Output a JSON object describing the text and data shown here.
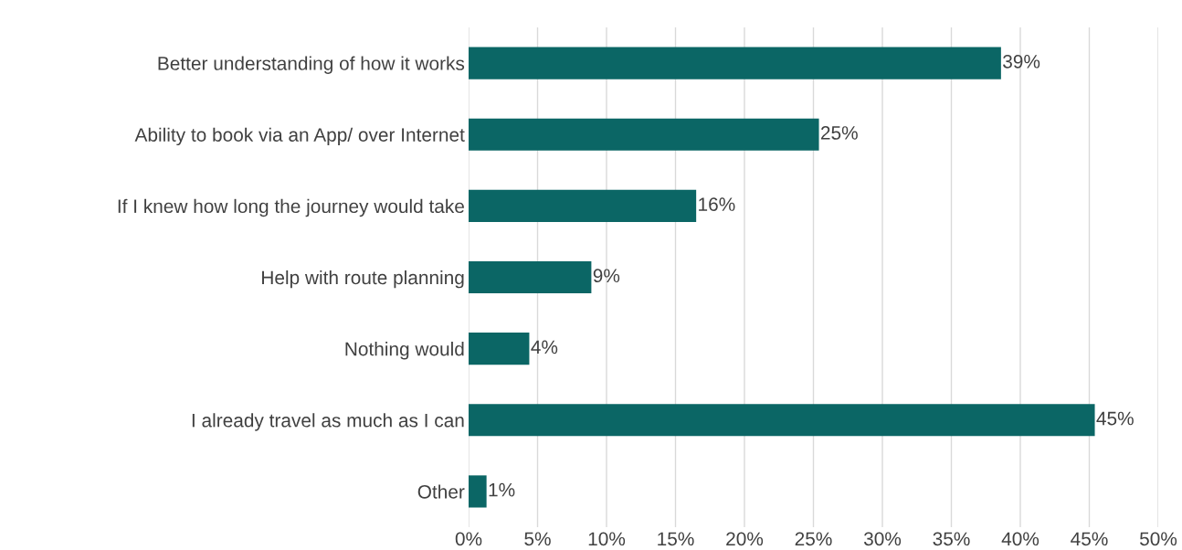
{
  "chart_data": {
    "type": "bar",
    "orientation": "horizontal",
    "categories": [
      "Better understanding of how it works",
      "Ability to book via an App/ over Internet",
      "If I knew how long the journey would take",
      "Help with route planning",
      "Nothing would",
      "I already travel as much as I can",
      "Other"
    ],
    "values": [
      38.6,
      25.4,
      16.5,
      8.9,
      4.4,
      45.4,
      1.3
    ],
    "value_labels": [
      "39%",
      "25%",
      "16%",
      "9%",
      "4%",
      "45%",
      "1%"
    ],
    "color": "#0b6665",
    "xlim": [
      0,
      50
    ],
    "xticks": [
      {
        "value": 0,
        "label": "0%"
      },
      {
        "value": 5,
        "label": "5%"
      },
      {
        "value": 10,
        "label": "10%"
      },
      {
        "value": 15,
        "label": "15%"
      },
      {
        "value": 20,
        "label": "20%"
      },
      {
        "value": 25,
        "label": "25%"
      },
      {
        "value": 30,
        "label": "30%"
      },
      {
        "value": 35,
        "label": "35%"
      },
      {
        "value": 40,
        "label": "40%"
      },
      {
        "value": 45,
        "label": "45%"
      },
      {
        "value": 50,
        "label": "50%"
      }
    ],
    "grid": "x"
  }
}
